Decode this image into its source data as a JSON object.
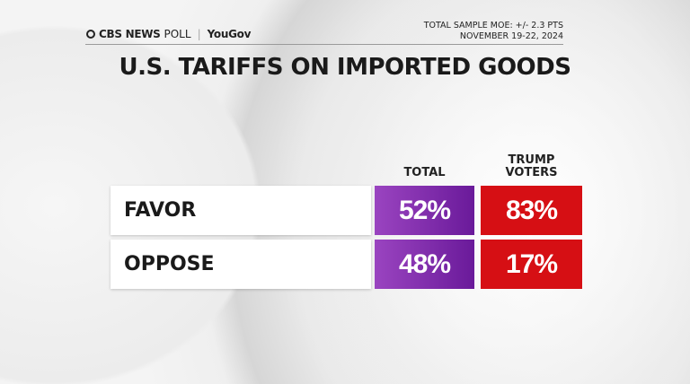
{
  "header": {
    "logo_text": "CBS NEWS POLL | YouGov",
    "logo_brand": "CBS NEWS",
    "logo_poll": "POLL",
    "logo_partner": "YouGov",
    "moe": "TOTAL SAMPLE MOE: +/- 2.3 PTS",
    "dates": "NOVEMBER 19-22, 2024"
  },
  "title": "U.S. TARIFFS ON IMPORTED GOODS",
  "colors": {
    "total": "#7b2aa8",
    "trump_voters": "#d60f14"
  },
  "chart_data": {
    "type": "table",
    "title": "U.S. TARIFFS ON IMPORTED GOODS",
    "columns": [
      "TOTAL",
      "TRUMP VOTERS"
    ],
    "column_lines": [
      [
        "TOTAL"
      ],
      [
        "TRUMP",
        "VOTERS"
      ]
    ],
    "rows": [
      {
        "label": "FAVOR",
        "values": [
          "52%",
          "83%"
        ]
      },
      {
        "label": "OPPOSE",
        "values": [
          "48%",
          "17%"
        ]
      }
    ]
  }
}
